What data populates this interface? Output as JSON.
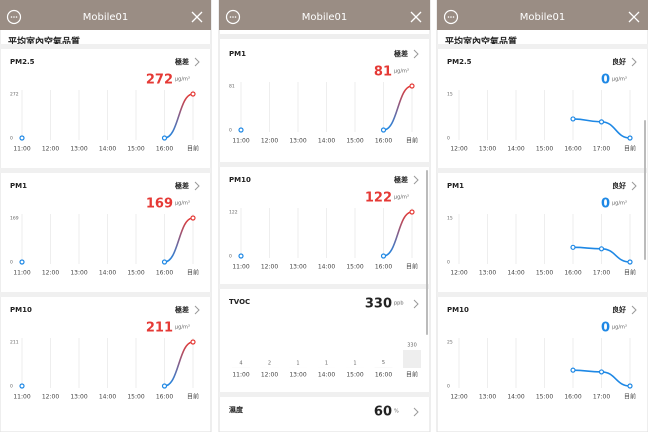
{
  "panels": [
    {
      "header": "Mobile01",
      "title": "平均室內空氣品質",
      "cards": [
        {
          "type": "line",
          "name": "PM2.5",
          "status": "極差",
          "value": 272,
          "unit": "μg/m³",
          "color": "#e53935",
          "yticks": [
            0,
            272
          ],
          "x": [
            "11:00",
            "12:00",
            "13:00",
            "14:00",
            "15:00",
            "16:00",
            "目前"
          ],
          "values": [
            0,
            null,
            null,
            null,
            null,
            0,
            272
          ]
        },
        {
          "type": "line",
          "name": "PM1",
          "status": "極差",
          "value": 169,
          "unit": "μg/m³",
          "color": "#e53935",
          "yticks": [
            0,
            169
          ],
          "x": [
            "11:00",
            "12:00",
            "13:00",
            "14:00",
            "15:00",
            "16:00",
            "目前"
          ],
          "values": [
            0,
            null,
            null,
            null,
            null,
            0,
            169
          ]
        },
        {
          "type": "line",
          "name": "PM10",
          "status": "極差",
          "value": 211,
          "unit": "μg/m³",
          "color": "#e53935",
          "yticks": [
            0,
            211
          ],
          "x": [
            "11:00",
            "12:00",
            "13:00",
            "14:00",
            "15:00",
            "16:00",
            "目前"
          ],
          "values": [
            0,
            null,
            null,
            null,
            null,
            0,
            211
          ]
        }
      ]
    },
    {
      "header": "Mobile01",
      "cards": [
        {
          "type": "line",
          "name": "PM1",
          "status": "極差",
          "value": 81,
          "unit": "μg/m³",
          "color": "#e53935",
          "yticks": [
            0,
            81
          ],
          "x": [
            "11:00",
            "12:00",
            "13:00",
            "14:00",
            "15:00",
            "16:00",
            "目前"
          ],
          "values": [
            0,
            null,
            null,
            null,
            null,
            0,
            81
          ]
        },
        {
          "type": "line",
          "name": "PM10",
          "status": "極差",
          "value": 122,
          "unit": "μg/m³",
          "color": "#e53935",
          "yticks": [
            0,
            122
          ],
          "x": [
            "11:00",
            "12:00",
            "13:00",
            "14:00",
            "15:00",
            "16:00",
            "目前"
          ],
          "values": [
            0,
            null,
            null,
            null,
            null,
            0,
            122
          ]
        },
        {
          "type": "bar",
          "name": "TVOC",
          "value": 330,
          "unit": "ppb",
          "color": "#222222",
          "x": [
            "11:00",
            "12:00",
            "13:00",
            "14:00",
            "15:00",
            "16:00",
            "目前"
          ],
          "values": [
            4,
            2,
            1,
            1,
            1,
            5,
            330
          ]
        },
        {
          "type": "value",
          "name": "濕度",
          "value": 60,
          "unit": "%",
          "color": "#222222"
        }
      ]
    },
    {
      "header": "Mobile01",
      "title": "平均室內空氣品質",
      "cards": [
        {
          "type": "line",
          "name": "PM2.5",
          "status": "良好",
          "value": 0,
          "unit": "μg/m³",
          "color": "#1e88e5",
          "yticks": [
            0,
            15
          ],
          "x": [
            "12:00",
            "13:00",
            "14:00",
            "15:00",
            "16:00",
            "17:00",
            "目前"
          ],
          "values": [
            null,
            null,
            null,
            null,
            6.5,
            5.5,
            0
          ]
        },
        {
          "type": "line",
          "name": "PM1",
          "status": "良好",
          "value": 0,
          "unit": "μg/m³",
          "color": "#1e88e5",
          "yticks": [
            0,
            15
          ],
          "x": [
            "12:00",
            "13:00",
            "14:00",
            "15:00",
            "16:00",
            "17:00",
            "目前"
          ],
          "values": [
            null,
            null,
            null,
            null,
            5,
            4.5,
            0
          ]
        },
        {
          "type": "line",
          "name": "PM10",
          "status": "良好",
          "value": 0,
          "unit": "μg/m³",
          "color": "#1e88e5",
          "yticks": [
            0,
            25
          ],
          "x": [
            "12:00",
            "13:00",
            "14:00",
            "15:00",
            "16:00",
            "17:00",
            "目前"
          ],
          "values": [
            null,
            null,
            null,
            null,
            9,
            8,
            0
          ]
        }
      ]
    }
  ]
}
